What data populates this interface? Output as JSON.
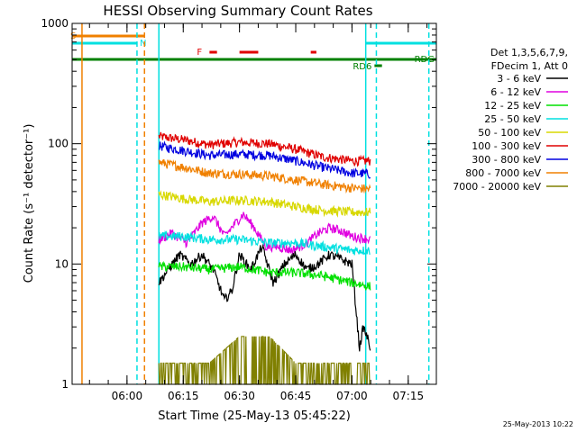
{
  "chart_data": {
    "type": "line",
    "title": "HESSI Observing Summary Count Rates",
    "xlabel": "Start Time (25-May-13 05:45:22)",
    "ylabel": "Count Rate (s⁻¹ detector⁻¹)",
    "yscale": "log",
    "ylim": [
      1,
      1000
    ],
    "xlim": [
      "05:45:22",
      "07:22:30"
    ],
    "x_ticks": [
      "06:00",
      "06:15",
      "06:30",
      "06:45",
      "07:00",
      "07:15"
    ],
    "y_ticks": [
      "1",
      "10",
      "100",
      "1000"
    ],
    "timestamp": "25-May-2013 10:22",
    "legend": {
      "header": [
        "Det 1,3,5,6,7,9,",
        "FDecim 1, Att 0"
      ],
      "entries": [
        {
          "label": "3 - 6 keV",
          "color": "#000000"
        },
        {
          "label": "6 - 12 keV",
          "color": "#e000e0"
        },
        {
          "label": "12 - 25 keV",
          "color": "#00e000"
        },
        {
          "label": "25 - 50 keV",
          "color": "#00e0e0"
        },
        {
          "label": "50 - 100 keV",
          "color": "#d8d800"
        },
        {
          "label": "100 - 300 keV",
          "color": "#e00000"
        },
        {
          "label": "300 - 800 keV",
          "color": "#0000e0"
        },
        {
          "label": "800 - 7000 keV",
          "color": "#f08000"
        },
        {
          "label": "7000 - 20000 keV",
          "color": "#808000"
        }
      ]
    },
    "flags": {
      "saa": {
        "label": "S",
        "start": "05:45:22",
        "end": "06:04:40",
        "color": "#f08000"
      },
      "night": {
        "label": "N",
        "start": "05:45:22",
        "end": "06:02:40",
        "color": "#00e0e0"
      },
      "night_after": {
        "start": "07:03:40",
        "end": "07:22:30",
        "color": "#00e0e0"
      },
      "flare": {
        "label": "F",
        "segments": [
          [
            "06:22:00",
            "06:24:00"
          ],
          [
            "06:30:00",
            "06:35:00"
          ],
          [
            "06:49:00",
            "06:50:30"
          ]
        ],
        "color": "#e00000"
      },
      "decimation": {
        "label": "RDG",
        "start": "05:45:22",
        "end": "07:22:30",
        "color": "#008000"
      },
      "rd6": {
        "label": "RD6",
        "start": "07:06:00",
        "end": "07:08:00",
        "color": "#008000"
      }
    },
    "vertical_markers": [
      {
        "time": "05:48:00",
        "color": "#f08000",
        "style": "solid"
      },
      {
        "time": "06:02:40",
        "color": "#00e0e0",
        "style": "dashed"
      },
      {
        "time": "06:04:40",
        "color": "#f08000",
        "style": "dashed"
      },
      {
        "time": "06:08:30",
        "color": "#00e0e0",
        "style": "solid"
      },
      {
        "time": "07:03:40",
        "color": "#00e0e0",
        "style": "solid"
      },
      {
        "time": "07:06:30",
        "color": "#00e0e0",
        "style": "dashed"
      },
      {
        "time": "07:20:30",
        "color": "#00e0e0",
        "style": "dashed"
      }
    ],
    "series": [
      {
        "name": "100 - 300 keV",
        "color": "#e00000",
        "x": [
          "06:08:30",
          "06:15",
          "06:22",
          "06:30",
          "06:38",
          "06:45",
          "06:52",
          "07:00",
          "07:05"
        ],
        "values": [
          115,
          108,
          98,
          103,
          100,
          90,
          78,
          72,
          72
        ]
      },
      {
        "name": "300 - 800 keV",
        "color": "#0000e0",
        "x": [
          "06:08:30",
          "06:15",
          "06:22",
          "06:30",
          "06:38",
          "06:45",
          "06:52",
          "07:00",
          "07:05"
        ],
        "values": [
          96,
          88,
          80,
          82,
          80,
          72,
          64,
          57,
          56
        ]
      },
      {
        "name": "800 - 7000 keV",
        "color": "#f08000",
        "x": [
          "06:08:30",
          "06:15",
          "06:22",
          "06:30",
          "06:38",
          "06:45",
          "06:52",
          "07:00",
          "07:05"
        ],
        "values": [
          70,
          64,
          57,
          56,
          54,
          50,
          46,
          43,
          42
        ]
      },
      {
        "name": "50 - 100 keV",
        "color": "#d8d800",
        "x": [
          "06:08:30",
          "06:15",
          "06:22",
          "06:30",
          "06:38",
          "06:45",
          "06:52",
          "07:00",
          "07:05"
        ],
        "values": [
          38,
          35,
          33,
          34,
          33,
          30,
          28,
          27,
          27
        ]
      },
      {
        "name": "6 - 12 keV",
        "color": "#e000e0",
        "x": [
          "06:08:30",
          "06:12",
          "06:16",
          "06:20",
          "06:23",
          "06:26",
          "06:29",
          "06:31",
          "06:34",
          "06:37",
          "06:40",
          "06:44",
          "06:48",
          "06:51",
          "06:54",
          "06:57",
          "07:00",
          "07:05"
        ],
        "values": [
          16,
          18,
          15,
          22,
          25,
          17,
          22,
          26,
          20,
          14,
          14,
          13,
          15,
          18,
          20,
          19,
          17,
          16
        ]
      },
      {
        "name": "25 - 50 keV",
        "color": "#00e0e0",
        "x": [
          "06:08:30",
          "06:15",
          "06:22",
          "06:30",
          "06:38",
          "06:45",
          "06:52",
          "07:00",
          "07:05"
        ],
        "values": [
          17,
          17,
          16,
          16,
          15,
          15,
          14,
          13,
          13
        ]
      },
      {
        "name": "3 - 6 keV",
        "color": "#000000",
        "x": [
          "06:08:30",
          "06:11",
          "06:14",
          "06:17",
          "06:20",
          "06:23",
          "06:26",
          "06:28",
          "06:30",
          "06:33",
          "06:36",
          "06:39",
          "06:42",
          "06:45",
          "06:48",
          "06:51",
          "06:54",
          "06:57",
          "07:00",
          "07:02",
          "07:03",
          "07:04",
          "07:05"
        ],
        "values": [
          7,
          9,
          12,
          10,
          12,
          9,
          5,
          6,
          12,
          9,
          14,
          7,
          10,
          12,
          9,
          10,
          12,
          11,
          10,
          2,
          3,
          2.5,
          2
        ]
      },
      {
        "name": "12 - 25 keV",
        "color": "#00e000",
        "x": [
          "06:08:30",
          "06:15",
          "06:22",
          "06:30",
          "06:38",
          "06:45",
          "06:52",
          "07:00",
          "07:05"
        ],
        "values": [
          9.5,
          9.5,
          9,
          9.5,
          8.5,
          8.5,
          8,
          7,
          6.5
        ]
      },
      {
        "name": "7000 - 20000 keV",
        "color": "#808000",
        "x": [
          "06:08:30",
          "06:15",
          "06:22",
          "06:30",
          "06:38",
          "06:45",
          "06:52",
          "07:00",
          "07:05"
        ],
        "values": [
          1.5,
          1.5,
          1.5,
          2.5,
          2.5,
          1.5,
          1.5,
          1.5,
          1.5
        ]
      }
    ]
  }
}
